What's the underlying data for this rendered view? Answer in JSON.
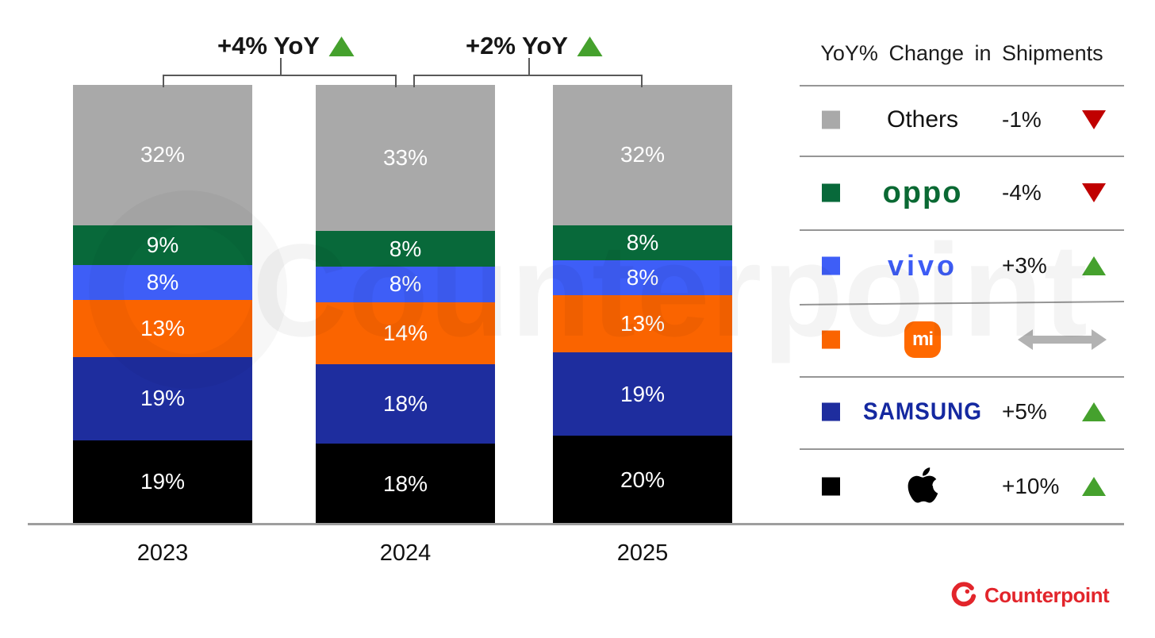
{
  "chart_data": {
    "type": "stacked-bar",
    "title": "",
    "categories": [
      "2023",
      "2024",
      "2025"
    ],
    "unit": "%",
    "ylim": [
      0,
      100
    ],
    "grid": false,
    "bar_label_style": "white-inside",
    "series": [
      {
        "id": "apple",
        "name": "Apple",
        "color": "#000000",
        "values": [
          19,
          18,
          20
        ]
      },
      {
        "id": "samsung",
        "name": "Samsung",
        "color": "#1e2d9e",
        "values": [
          19,
          18,
          19
        ]
      },
      {
        "id": "xiaomi",
        "name": "Xiaomi",
        "color": "#fa6400",
        "values": [
          13,
          14,
          13
        ]
      },
      {
        "id": "vivo",
        "name": "vivo",
        "color": "#3e5ef7",
        "values": [
          8,
          8,
          8
        ]
      },
      {
        "id": "oppo",
        "name": "OPPO",
        "color": "#08693a",
        "values": [
          9,
          8,
          8
        ]
      },
      {
        "id": "others",
        "name": "Others",
        "color": "#a9a9a9",
        "values": [
          32,
          33,
          32
        ]
      }
    ],
    "annotations": [
      {
        "label": "+4% YoY",
        "trend": "up",
        "between": [
          "2023",
          "2024"
        ]
      },
      {
        "label": "+2% YoY",
        "trend": "up",
        "between": [
          "2024",
          "2025"
        ]
      }
    ]
  },
  "legend": {
    "title": "YoY% Change in Shipments",
    "rows": [
      {
        "id": "others",
        "label": "Others",
        "swatch": "#a9a9a9",
        "change": "-1%",
        "trend": "down"
      },
      {
        "id": "oppo",
        "label": "oppo",
        "swatch": "#08693a",
        "change": "-4%",
        "trend": "down"
      },
      {
        "id": "vivo",
        "label": "vivo",
        "swatch": "#3e5ef7",
        "change": "+3%",
        "trend": "up"
      },
      {
        "id": "xiaomi",
        "label": "mi",
        "swatch": "#fa6400",
        "change": "",
        "trend": "flat"
      },
      {
        "id": "samsung",
        "label": "SAMSUNG",
        "swatch": "#1e2d9e",
        "change": "+5%",
        "trend": "up"
      },
      {
        "id": "apple",
        "label": "Apple",
        "swatch": "#000000",
        "change": "+10%",
        "trend": "up"
      }
    ]
  },
  "branding": {
    "watermark": "Counterpoint",
    "footer_logo": "Counterpoint"
  },
  "colors": {
    "trend_up": "#45a12d",
    "trend_down": "#c00000",
    "trend_flat": "#b2b2b2",
    "logo_oppo": "#0a6933",
    "logo_vivo": "#3d5cf5",
    "logo_samsung": "#1428a0",
    "logo_mi_badge": "#ff6900",
    "counterpoint_red": "#e2252b",
    "axis": "#9e9e9e"
  }
}
